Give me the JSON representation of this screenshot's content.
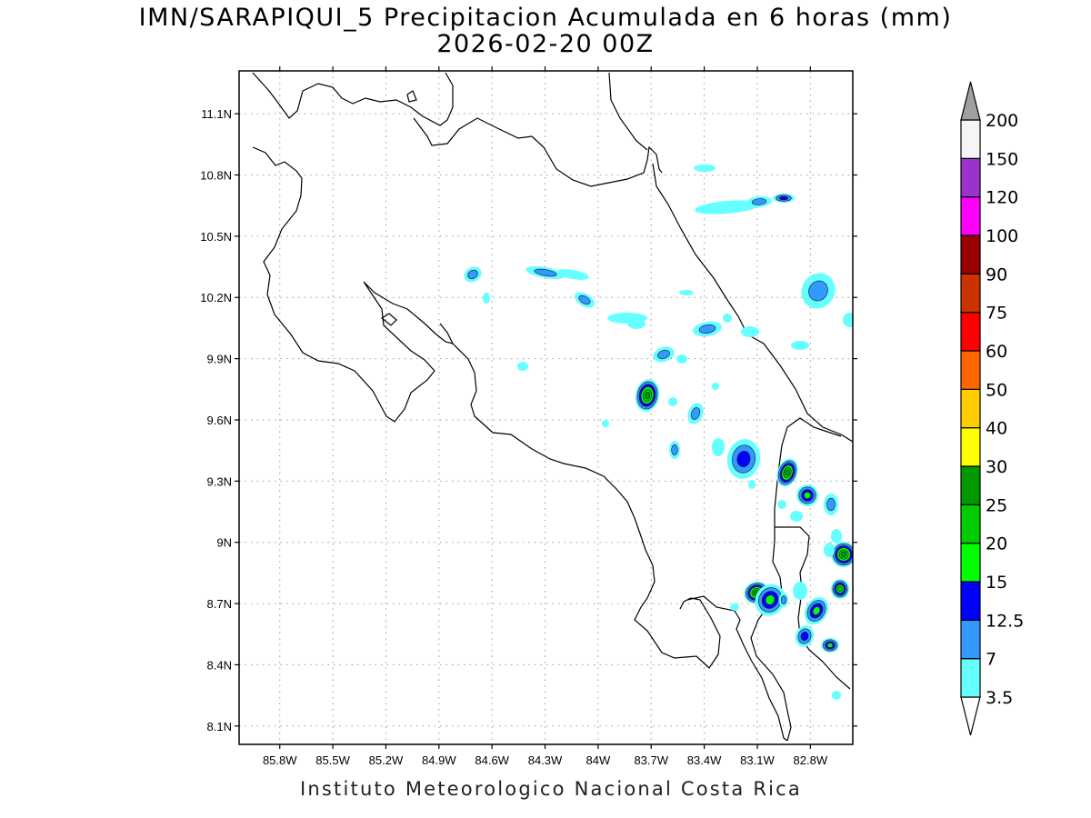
{
  "title": {
    "line1": "IMN/SARAPIQUI_5 Precipitacion Acumulada en 6 horas (mm)",
    "line2": "2026-02-20 00Z"
  },
  "credit": "Instituto Meteorologico Nacional Costa Rica",
  "map": {
    "lon_range": [
      -86.03,
      -82.56
    ],
    "lat_range": [
      8.01,
      11.31
    ],
    "lon_ticks": [
      "85.8W",
      "85.5W",
      "85.2W",
      "84.9W",
      "84.6W",
      "84.3W",
      "84W",
      "83.7W",
      "83.4W",
      "83.1W",
      "82.8W"
    ],
    "lat_ticks": [
      "11.1N",
      "10.8N",
      "10.5N",
      "10.2N",
      "9.9N",
      "9.6N",
      "9.3N",
      "9N",
      "8.7N",
      "8.4N",
      "8.1N"
    ],
    "grid": true
  },
  "colorbar": {
    "labels": [
      "3.5",
      "7",
      "12.5",
      "15",
      "20",
      "25",
      "30",
      "40",
      "50",
      "60",
      "75",
      "90",
      "100",
      "120",
      "150",
      "200"
    ],
    "colors": [
      "#66ffff",
      "#3399ff",
      "#0000ff",
      "#00ff00",
      "#00cc00",
      "#009900",
      "#ffff00",
      "#ffcc00",
      "#ff6600",
      "#ff0000",
      "#cc3300",
      "#990000",
      "#ff00ff",
      "#9933cc",
      "#f5f5f5",
      "#a0a0a0"
    ]
  }
}
